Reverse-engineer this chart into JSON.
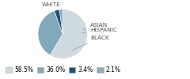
{
  "labels": [
    "WHITE",
    "BLACK",
    "ASIAN",
    "HISPANIC"
  ],
  "values": [
    58.5,
    36.0,
    3.4,
    2.1
  ],
  "colors": [
    "#cfd9e0",
    "#83a8ba",
    "#1d4f76",
    "#8faabb"
  ],
  "legend_labels": [
    "58.5%",
    "36.0%",
    "3.4%",
    "2.1%"
  ],
  "startangle": 90,
  "label_fontsize": 5.2,
  "legend_fontsize": 5.5,
  "background_color": "#ffffff"
}
